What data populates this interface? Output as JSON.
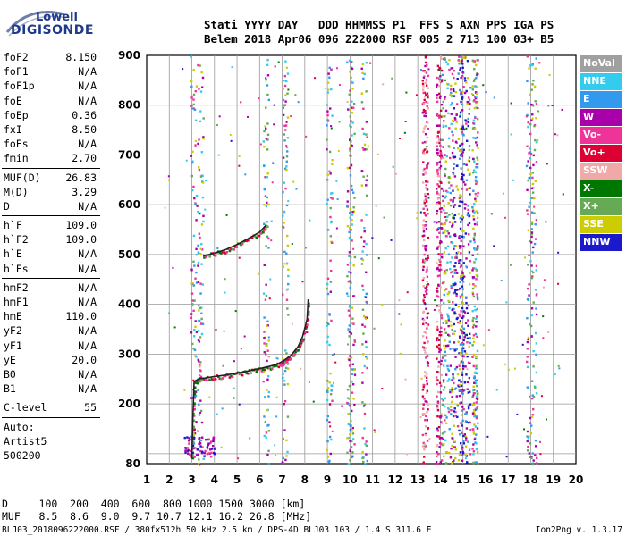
{
  "logo": {
    "line1": "Lowell",
    "line2": "DIGISONDE"
  },
  "header": {
    "line1": "Stati YYYY DAY   DDD HHMMSS P1  FFS S AXN PPS IGA PS",
    "line2": "Belem 2018 Apr06 096 222000 RSF 005 2 713 100 03+ B5"
  },
  "params": [
    {
      "name": "foF2",
      "value": "8.150"
    },
    {
      "name": "foF1",
      "value": "N/A"
    },
    {
      "name": "foF1p",
      "value": "N/A"
    },
    {
      "name": "foE",
      "value": "N/A"
    },
    {
      "name": "foEp",
      "value": "0.36"
    },
    {
      "name": "fxI",
      "value": "8.50"
    },
    {
      "name": "foEs",
      "value": "N/A"
    },
    {
      "name": "fmin",
      "value": "2.70"
    },
    {
      "sep": true
    },
    {
      "name": "MUF(D)",
      "value": "26.83"
    },
    {
      "name": "M(D)",
      "value": "3.29"
    },
    {
      "name": "D",
      "value": "N/A"
    },
    {
      "sep": true
    },
    {
      "name": "h`F",
      "value": "109.0"
    },
    {
      "name": "h`F2",
      "value": "109.0"
    },
    {
      "name": "h`E",
      "value": "N/A"
    },
    {
      "name": "h`Es",
      "value": "N/A"
    },
    {
      "sep": true
    },
    {
      "name": "hmF2",
      "value": "N/A"
    },
    {
      "name": "hmF1",
      "value": "N/A"
    },
    {
      "name": "hmE",
      "value": "110.0"
    },
    {
      "name": "yF2",
      "value": "N/A"
    },
    {
      "name": "yF1",
      "value": "N/A"
    },
    {
      "name": "yE",
      "value": "20.0"
    },
    {
      "name": "B0",
      "value": "N/A"
    },
    {
      "name": "B1",
      "value": "N/A"
    },
    {
      "sep": true
    },
    {
      "name": "C-level",
      "value": "55"
    },
    {
      "sep": true
    },
    {
      "name": "Auto:",
      "value": ""
    },
    {
      "name": "Artist5",
      "value": ""
    },
    {
      "name": "500200",
      "value": ""
    }
  ],
  "legend": [
    {
      "label": "NoVal",
      "color": "#a0a0a0"
    },
    {
      "label": "NNE",
      "color": "#33ccee"
    },
    {
      "label": "E",
      "color": "#3399ee"
    },
    {
      "label": "W",
      "color": "#aa00aa"
    },
    {
      "label": "Vo-",
      "color": "#ee3399"
    },
    {
      "label": "Vo+",
      "color": "#dd0033"
    },
    {
      "label": "SSW",
      "color": "#f0a8a8"
    },
    {
      "label": "X-",
      "color": "#007700"
    },
    {
      "label": "X+",
      "color": "#66aa55"
    },
    {
      "label": "SSE",
      "color": "#cccc00"
    },
    {
      "label": "NNW",
      "color": "#1a1acc"
    }
  ],
  "chart_data": {
    "type": "scatter",
    "xlabel": "",
    "ylabel": "",
    "xlim": [
      1,
      20
    ],
    "ylim": [
      80,
      900
    ],
    "x_ticks": [
      1,
      2,
      3,
      4,
      5,
      6,
      7,
      8,
      9,
      10,
      11,
      12,
      13,
      14,
      15,
      16,
      17,
      18,
      19,
      20
    ],
    "y_ticks": [
      100,
      200,
      300,
      400,
      500,
      600,
      700,
      800,
      900
    ],
    "y_tick_labels": [
      "100",
      "200",
      "300",
      "400",
      "500",
      "600",
      "700",
      "800",
      "900"
    ],
    "y_min_label": "80",
    "grid": true,
    "trace_lower": {
      "name": "",
      "x": [
        3.0,
        3.05,
        3.1,
        3.3,
        3.6,
        4.0,
        4.5,
        5.0,
        5.5,
        6.0,
        6.4,
        6.8,
        7.1,
        7.4,
        7.7,
        7.9,
        8.1,
        8.15
      ],
      "y": [
        90,
        180,
        245,
        250,
        252,
        255,
        258,
        262,
        266,
        271,
        275,
        280,
        288,
        298,
        315,
        335,
        370,
        410
      ]
    },
    "trace_upper": {
      "name": "",
      "x": [
        3.5,
        4.0,
        4.5,
        5.0,
        5.5,
        6.0,
        6.3
      ],
      "y": [
        497,
        503,
        510,
        520,
        532,
        545,
        560
      ]
    },
    "band_columns_mhz": [
      3.05,
      3.35,
      6.25,
      7.1,
      9.05,
      9.95,
      10.05,
      10.6,
      13.3,
      13.9,
      14.3,
      14.75,
      15.05,
      15.5,
      17.9,
      18.1
    ]
  },
  "footer": {
    "line1": "D     100  200  400  600  800 1000 1500 3000 [km]",
    "line2": "MUF   8.5  8.6  9.0  9.7 10.7 12.1 16.2 26.8 [MHz]"
  },
  "bottom": {
    "left": "BLJ03_2018096222000.RSF / 380fx512h 50 kHz 2.5 km / DPS-4D BLJ03 103 / 1.4 S 311.6 E",
    "right": "Ion2Png v. 1.3.17"
  }
}
